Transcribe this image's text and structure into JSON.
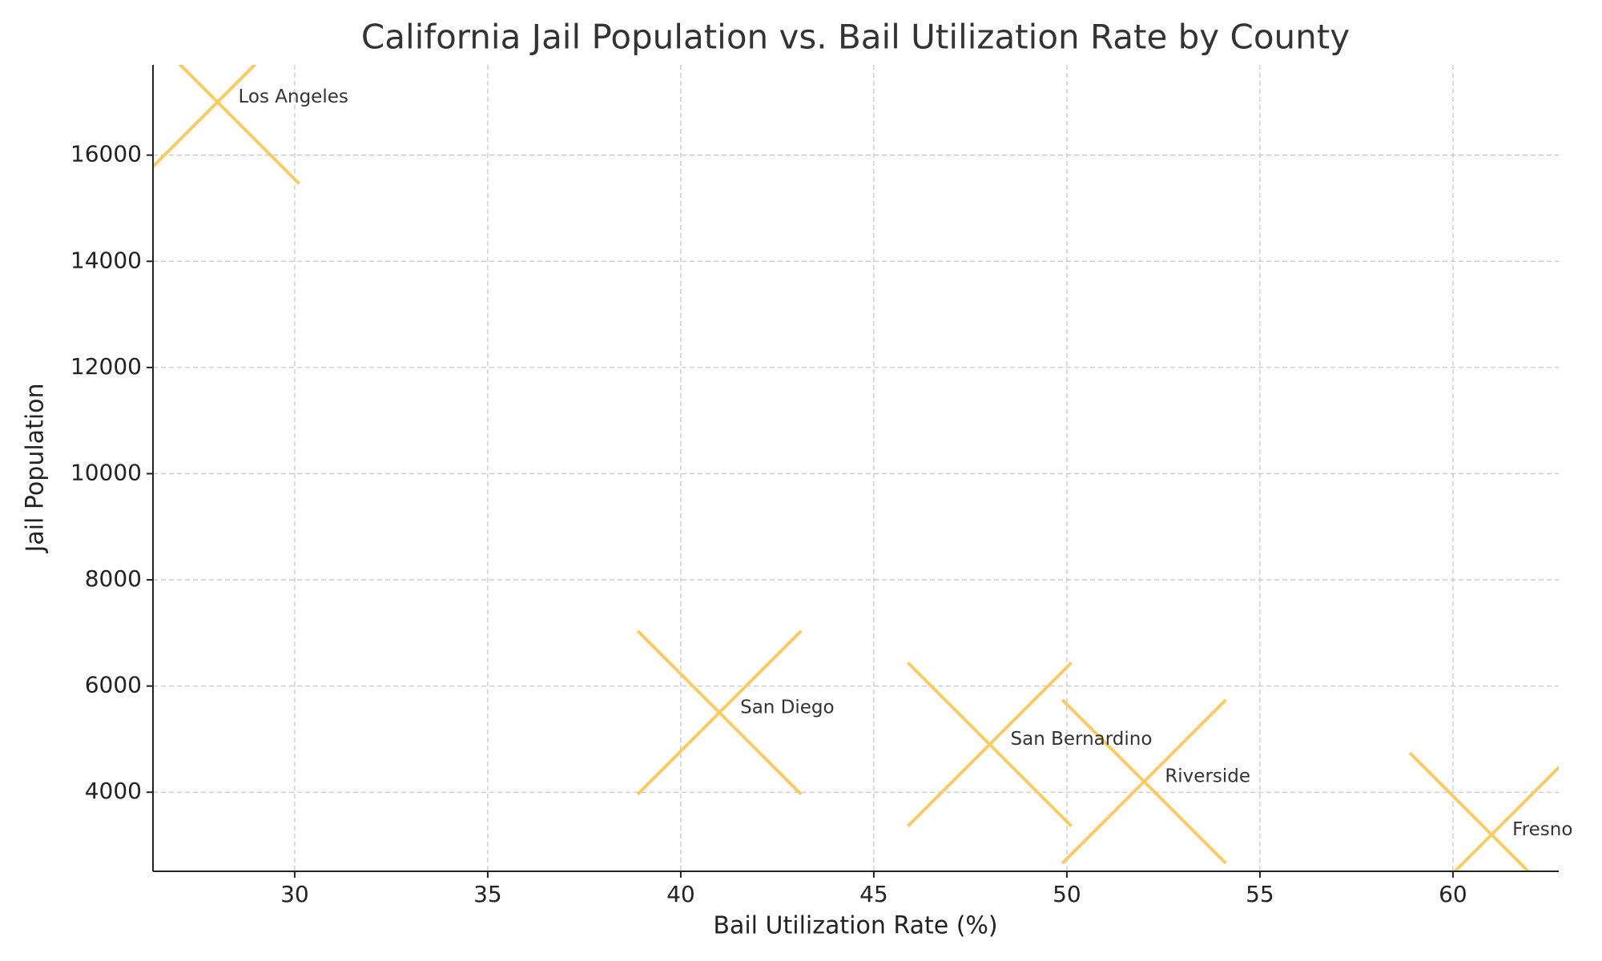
{
  "chart_data": {
    "type": "scatter",
    "title": "California Jail Population vs. Bail Utilization Rate by County",
    "x_label": "Bail Utilization Rate (%)",
    "y_label": "Jail Population",
    "labels": [
      "Los Angeles",
      "San Diego",
      "San Bernardino",
      "Riverside",
      "Fresno"
    ],
    "x": [
      28,
      41,
      48,
      52,
      61
    ],
    "y": [
      17000,
      5500,
      4900,
      4200,
      3200
    ],
    "color": "#f9cb63",
    "marker": "x",
    "xlim": [
      26.33,
      62.74
    ],
    "ylim": [
      2510,
      17700
    ],
    "xticks": [
      30,
      35,
      40,
      45,
      50,
      55,
      60
    ],
    "yticks": [
      4000,
      6000,
      8000,
      10000,
      12000,
      14000,
      16000
    ],
    "grid": true
  }
}
